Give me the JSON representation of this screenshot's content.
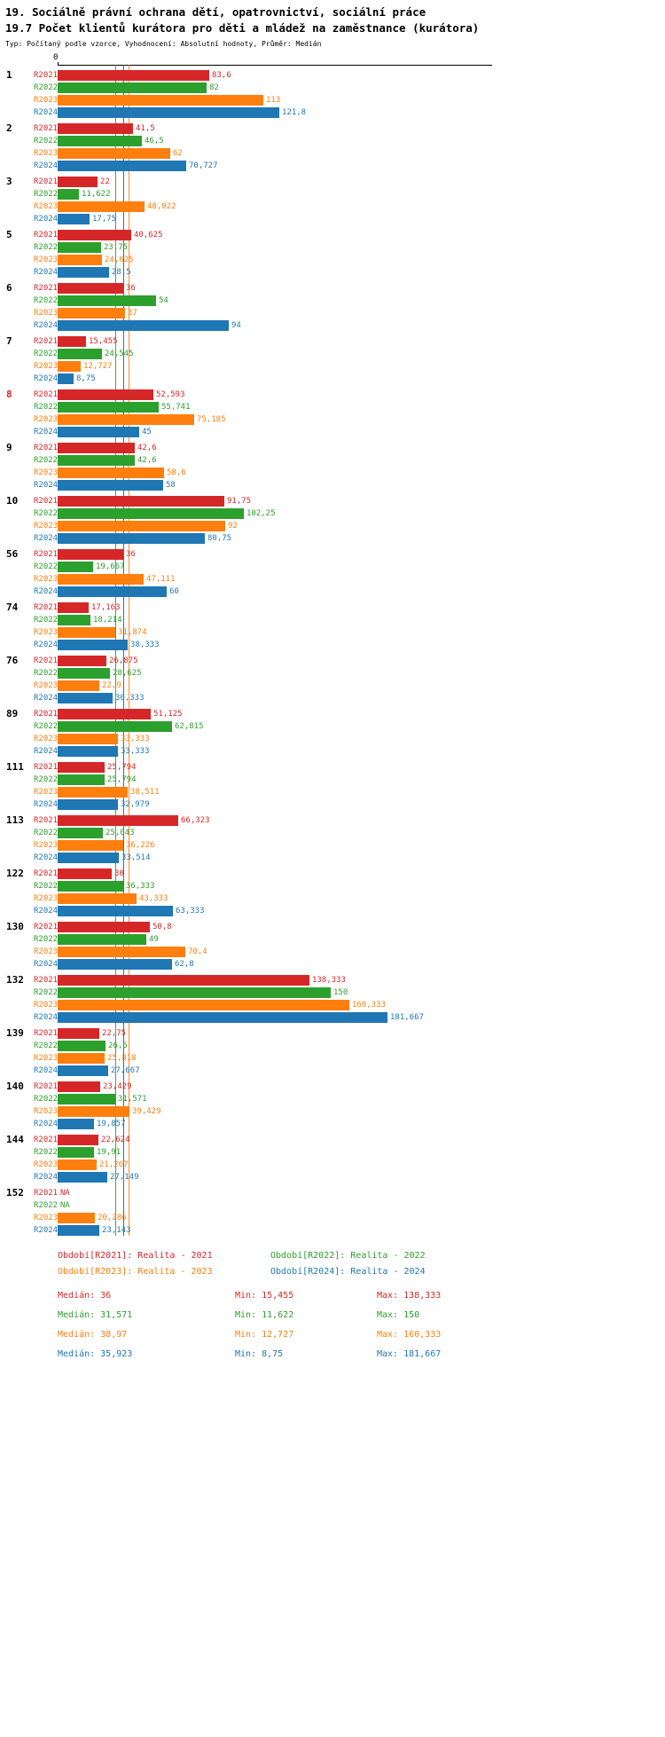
{
  "title": {
    "line1": "19. Sociálně právní ochrana dětí, opatrovnictví, sociální práce",
    "line2": "19.7 Počet klientů kurátora pro děti a mládež na zaměstnance (kurátora)",
    "subtitle": "Typ: Počítaný podle vzorce, Vyhodnocení: Absolutní hodnoty, Průměr: Medián"
  },
  "axis": {
    "zero_label": "0"
  },
  "colors": {
    "r2021": "#d62728",
    "r2022": "#2ca02c",
    "r2023": "#ff7f0e",
    "r2024": "#1f77b4",
    "text": "#000000"
  },
  "chart_data": {
    "type": "bar",
    "orientation": "horizontal",
    "title": "19.7 Počet klientů kurátora pro děti a mládež na zaměstnance (kurátora)",
    "xlabel": "",
    "ylabel": "",
    "x_axis": {
      "min": 0,
      "shown_tick_labels": [
        "0"
      ],
      "approx_max": 240
    },
    "grid": false,
    "legend_position": "bottom",
    "series_names": [
      "R2021",
      "R2022",
      "R2023",
      "R2024"
    ],
    "groups": [
      {
        "label": "1",
        "highlight": false,
        "values": [
          83.6,
          82,
          113,
          121.8
        ],
        "display": [
          "83,6",
          "82",
          "113",
          "121,8"
        ]
      },
      {
        "label": "2",
        "highlight": false,
        "values": [
          41.5,
          46.5,
          62,
          70.727
        ],
        "display": [
          "41,5",
          "46,5",
          "62",
          "70,727"
        ]
      },
      {
        "label": "3",
        "highlight": false,
        "values": [
          22,
          11.622,
          48.022,
          17.75
        ],
        "display": [
          "22",
          "11,622",
          "48,022",
          "17,75"
        ]
      },
      {
        "label": "5",
        "highlight": false,
        "values": [
          40.625,
          23.75,
          24.625,
          28.5
        ],
        "display": [
          "40,625",
          "23,75",
          "24,625",
          "28,5"
        ]
      },
      {
        "label": "6",
        "highlight": false,
        "values": [
          36,
          54,
          37,
          94
        ],
        "display": [
          "36",
          "54",
          "37",
          "94"
        ]
      },
      {
        "label": "7",
        "highlight": false,
        "values": [
          15.455,
          24.545,
          12.727,
          8.75
        ],
        "display": [
          "15,455",
          "24,545",
          "12,727",
          "8,75"
        ]
      },
      {
        "label": "8",
        "highlight": true,
        "values": [
          52.593,
          55.741,
          75.185,
          45
        ],
        "display": [
          "52,593",
          "55,741",
          "75,185",
          "45"
        ]
      },
      {
        "label": "9",
        "highlight": false,
        "values": [
          42.6,
          42.6,
          58.6,
          58
        ],
        "display": [
          "42,6",
          "42,6",
          "58,6",
          "58"
        ]
      },
      {
        "label": "10",
        "highlight": false,
        "values": [
          91.75,
          102.25,
          92,
          80.75
        ],
        "display": [
          "91,75",
          "102,25",
          "92",
          "80,75"
        ]
      },
      {
        "label": "56",
        "highlight": false,
        "values": [
          36,
          19.667,
          47.111,
          60
        ],
        "display": [
          "36",
          "19,667",
          "47,111",
          "60"
        ]
      },
      {
        "label": "74",
        "highlight": false,
        "values": [
          17.163,
          18.214,
          31.874,
          38.333
        ],
        "display": [
          "17,163",
          "18,214",
          "31,874",
          "38,333"
        ]
      },
      {
        "label": "76",
        "highlight": false,
        "values": [
          26.875,
          28.625,
          22.9,
          30.333
        ],
        "display": [
          "26,875",
          "28,625",
          "22,9",
          "30,333"
        ]
      },
      {
        "label": "89",
        "highlight": false,
        "values": [
          51.125,
          62.815,
          33.333,
          33.333
        ],
        "display": [
          "51,125",
          "62,815",
          "33,333",
          "33,333"
        ]
      },
      {
        "label": "111",
        "highlight": false,
        "values": [
          25.794,
          25.794,
          38.511,
          32.979
        ],
        "display": [
          "25,794",
          "25,794",
          "38,511",
          "32,979"
        ]
      },
      {
        "label": "113",
        "highlight": false,
        "values": [
          66.323,
          25.043,
          36.226,
          33.514
        ],
        "display": [
          "66,323",
          "25,043",
          "36,226",
          "33,514"
        ]
      },
      {
        "label": "122",
        "highlight": false,
        "values": [
          30,
          36.333,
          43.333,
          63.333
        ],
        "display": [
          "30",
          "36,333",
          "43,333",
          "63,333"
        ]
      },
      {
        "label": "130",
        "highlight": false,
        "values": [
          50.8,
          49,
          70.4,
          62.8
        ],
        "display": [
          "50,8",
          "49",
          "70,4",
          "62,8"
        ]
      },
      {
        "label": "132",
        "highlight": false,
        "values": [
          138.333,
          150,
          160.333,
          181.667
        ],
        "display": [
          "138,333",
          "150",
          "160,333",
          "181,667"
        ]
      },
      {
        "label": "139",
        "highlight": false,
        "values": [
          22.75,
          26.5,
          25.818,
          27.667
        ],
        "display": [
          "22,75",
          "26,5",
          "25,818",
          "27,667"
        ]
      },
      {
        "label": "140",
        "highlight": false,
        "values": [
          23.429,
          31.571,
          39.429,
          19.857
        ],
        "display": [
          "23,429",
          "31,571",
          "39,429",
          "19,857"
        ]
      },
      {
        "label": "144",
        "highlight": false,
        "values": [
          22.624,
          19.91,
          21.267,
          27.149
        ],
        "display": [
          "22,624",
          "19,91",
          "21,267",
          "27,149"
        ]
      },
      {
        "label": "152",
        "highlight": false,
        "values": [
          null,
          null,
          20.286,
          23.143
        ],
        "display": [
          "NA",
          "NA",
          "20,286",
          "23,143"
        ]
      }
    ],
    "medians": {
      "r2021": 36,
      "r2022": 31.571,
      "r2023": 38.97,
      "r2024": 35.923
    }
  },
  "legend": {
    "items": [
      {
        "label": "Období[R2021]: Realita - 2021",
        "color_key": "r2021"
      },
      {
        "label": "Období[R2022]: Realita - 2022",
        "color_key": "r2022"
      },
      {
        "label": "Období[R2023]: Realita - 2023",
        "color_key": "r2023"
      },
      {
        "label": "Období[R2024]: Realita - 2024",
        "color_key": "r2024"
      }
    ]
  },
  "stats": {
    "rows": [
      {
        "color_key": "r2021",
        "median": "Medián: 36",
        "min": "Min: 15,455",
        "max": "Max: 138,333"
      },
      {
        "color_key": "r2022",
        "median": "Medián: 31,571",
        "min": "Min: 11,622",
        "max": "Max: 150"
      },
      {
        "color_key": "r2023",
        "median": "Medián: 38,97",
        "min": "Min: 12,727",
        "max": "Max: 160,333"
      },
      {
        "color_key": "r2024",
        "median": "Medián: 35,923",
        "min": "Min: 8,75",
        "max": "Max: 181,667"
      }
    ]
  }
}
